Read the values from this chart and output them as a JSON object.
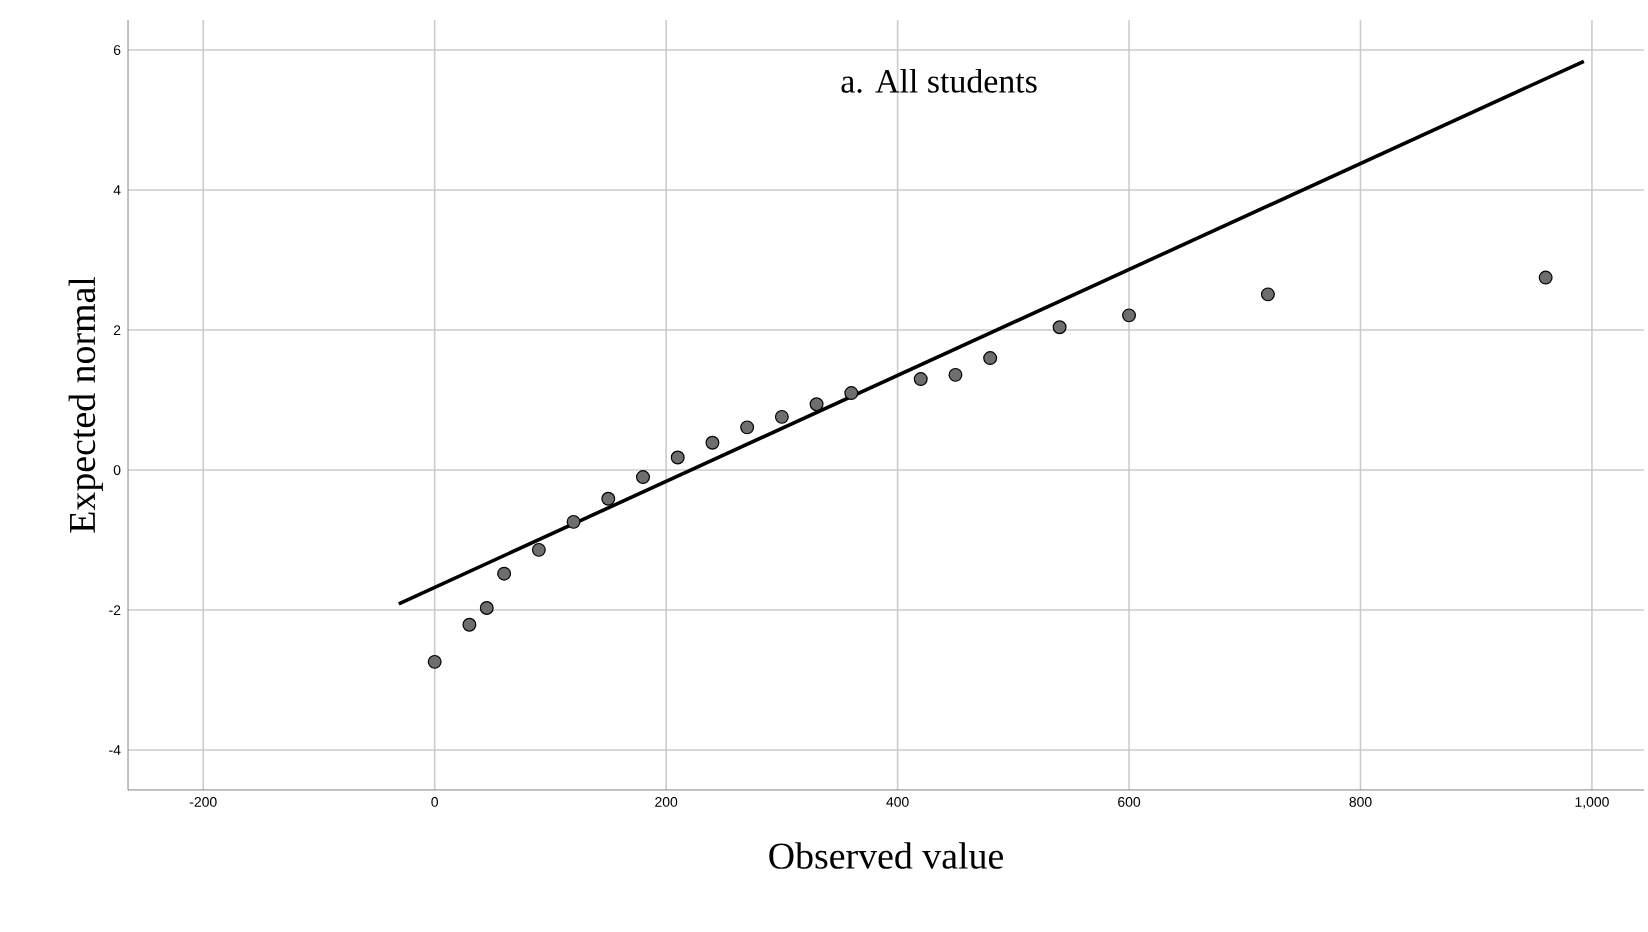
{
  "chart_data": {
    "type": "scatter",
    "title": "a.    All students",
    "xlabel": "Observed value",
    "ylabel": "Expected normal",
    "xlim": [
      -265,
      1045
    ],
    "ylim": [
      -4.57,
      6.43
    ],
    "xticks": [
      -200,
      0,
      200,
      400,
      600,
      800,
      {
        "value": 1000,
        "label": "1,000"
      }
    ],
    "yticks": [
      -4,
      -2,
      0,
      2,
      4,
      6
    ],
    "grid": true,
    "marker": "circle",
    "series": [
      {
        "color": "#6e6e6e",
        "x": [
          0,
          30,
          45,
          60,
          90,
          120,
          150,
          180,
          210,
          240,
          270,
          300,
          330,
          360,
          420,
          450,
          480,
          540,
          600,
          720,
          960
        ],
        "values": [
          -2.74,
          -2.21,
          -1.97,
          -1.48,
          -1.14,
          -0.74,
          -0.41,
          -0.1,
          0.18,
          0.39,
          0.61,
          0.76,
          0.94,
          1.1,
          1.3,
          1.36,
          1.6,
          2.04,
          2.21,
          2.51,
          2.75
        ]
      },
      {
        "type": "line",
        "color": "#000000",
        "marker": "none",
        "line_style": "solid",
        "x": [
          -31,
          993
        ],
        "values": [
          -1.91,
          5.84
        ]
      }
    ]
  }
}
